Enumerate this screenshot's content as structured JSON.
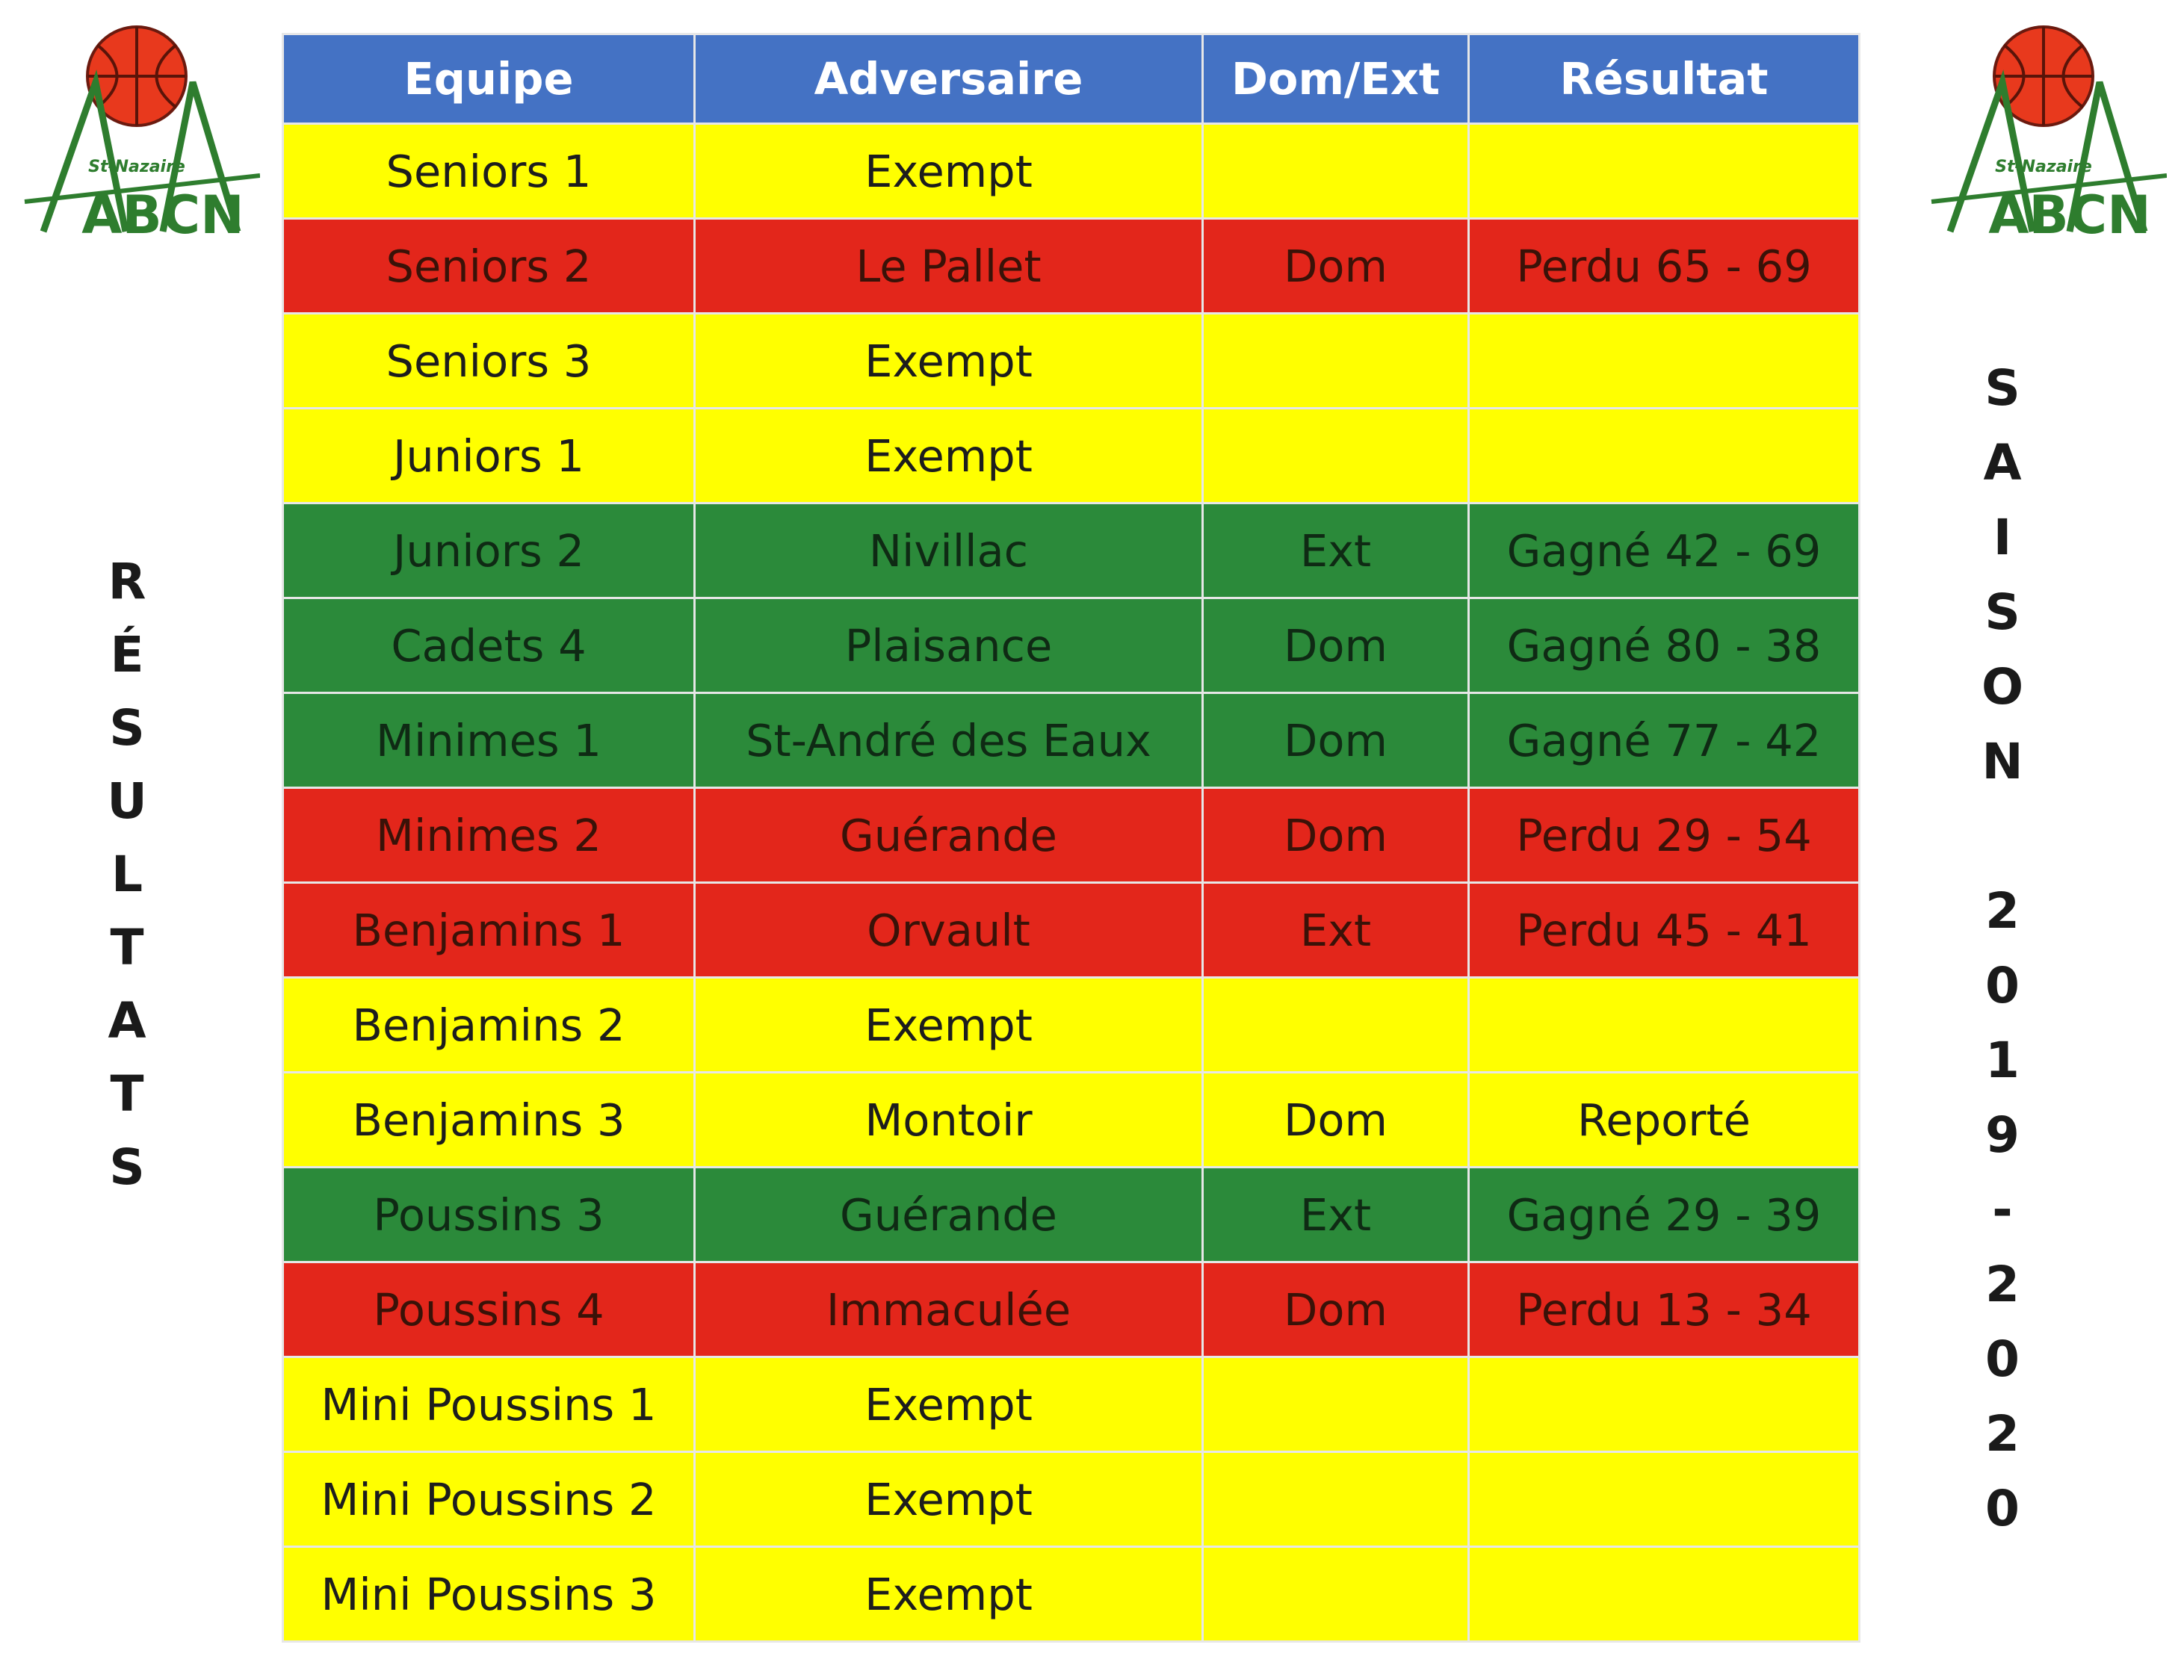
{
  "logo": {
    "club_name": "St-Nazaire",
    "letters": "ABCN",
    "ball_color": "#e8391d",
    "green": "#2e7d2e"
  },
  "side_left": [
    "R",
    "É",
    "S",
    "U",
    "L",
    "T",
    "A",
    "T",
    "S"
  ],
  "side_right": [
    "S",
    "A",
    "I",
    "S",
    "O",
    "N",
    " ",
    "2",
    "0",
    "1",
    "9",
    "-",
    "2",
    "0",
    "2",
    "0"
  ],
  "table": {
    "headers": [
      "Equipe",
      "Adversaire",
      "Dom/Ext",
      "Résultat"
    ],
    "header_color": "#4472c4",
    "status_colors": {
      "yellow": "#ffff00",
      "red": "#e3261b",
      "green": "#2b8a3a"
    },
    "rows": [
      {
        "equipe": "Seniors 1",
        "adversaire": "Exempt",
        "dom_ext": "",
        "resultat": "",
        "status": "yellow"
      },
      {
        "equipe": "Seniors 2",
        "adversaire": "Le Pallet",
        "dom_ext": "Dom",
        "resultat": "Perdu 65 - 69",
        "status": "red"
      },
      {
        "equipe": "Seniors 3",
        "adversaire": "Exempt",
        "dom_ext": "",
        "resultat": "",
        "status": "yellow"
      },
      {
        "equipe": "Juniors 1",
        "adversaire": "Exempt",
        "dom_ext": "",
        "resultat": "",
        "status": "yellow"
      },
      {
        "equipe": "Juniors 2",
        "adversaire": "Nivillac",
        "dom_ext": "Ext",
        "resultat": "Gagné 42 - 69",
        "status": "green"
      },
      {
        "equipe": "Cadets 4",
        "adversaire": "Plaisance",
        "dom_ext": "Dom",
        "resultat": "Gagné 80 - 38",
        "status": "green"
      },
      {
        "equipe": "Minimes 1",
        "adversaire": "St-André des Eaux",
        "dom_ext": "Dom",
        "resultat": "Gagné 77 - 42",
        "status": "green"
      },
      {
        "equipe": "Minimes 2",
        "adversaire": "Guérande",
        "dom_ext": "Dom",
        "resultat": "Perdu 29 - 54",
        "status": "red"
      },
      {
        "equipe": "Benjamins 1",
        "adversaire": "Orvault",
        "dom_ext": "Ext",
        "resultat": "Perdu 45 - 41",
        "status": "red"
      },
      {
        "equipe": "Benjamins 2",
        "adversaire": "Exempt",
        "dom_ext": "",
        "resultat": "",
        "status": "yellow"
      },
      {
        "equipe": "Benjamins 3",
        "adversaire": "Montoir",
        "dom_ext": "Dom",
        "resultat": "Reporté",
        "status": "yellow"
      },
      {
        "equipe": "Poussins 3",
        "adversaire": "Guérande",
        "dom_ext": "Ext",
        "resultat": "Gagné 29 - 39",
        "status": "green"
      },
      {
        "equipe": "Poussins 4",
        "adversaire": "Immaculée",
        "dom_ext": "Dom",
        "resultat": "Perdu 13 - 34",
        "status": "red"
      },
      {
        "equipe": "Mini Poussins 1",
        "adversaire": "Exempt",
        "dom_ext": "",
        "resultat": "",
        "status": "yellow"
      },
      {
        "equipe": "Mini Poussins 2",
        "adversaire": "Exempt",
        "dom_ext": "",
        "resultat": "",
        "status": "yellow"
      },
      {
        "equipe": "Mini Poussins 3",
        "adversaire": "Exempt",
        "dom_ext": "",
        "resultat": "",
        "status": "yellow"
      }
    ]
  }
}
